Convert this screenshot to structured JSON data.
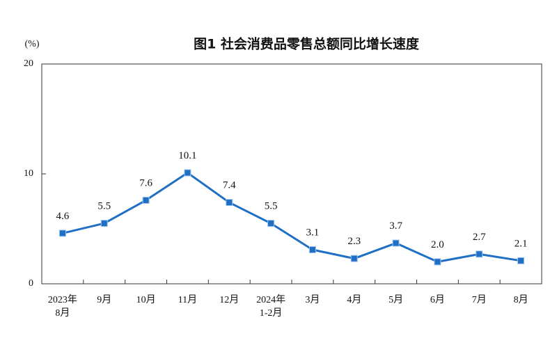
{
  "chart_data": {
    "type": "line",
    "title": "图1 社会消费品零售总额同比增长速度",
    "y_label": "(%)",
    "categories": [
      "2023年\n8月",
      "9月",
      "10月",
      "11月",
      "12月",
      "2024年\n1-2月",
      "3月",
      "4月",
      "5月",
      "6月",
      "7月",
      "8月"
    ],
    "values": [
      4.6,
      5.5,
      7.6,
      10.1,
      7.4,
      5.5,
      3.1,
      2.3,
      3.7,
      2.0,
      2.7,
      2.1
    ],
    "value_labels": [
      "4.6",
      "5.5",
      "7.6",
      "10.1",
      "7.4",
      "5.5",
      "3.1",
      "2.3",
      "3.7",
      "2.0",
      "2.7",
      "2.1"
    ],
    "color": "#1f6fc5",
    "ylim": [
      0,
      20
    ],
    "yticks": [
      0,
      10,
      20
    ]
  }
}
